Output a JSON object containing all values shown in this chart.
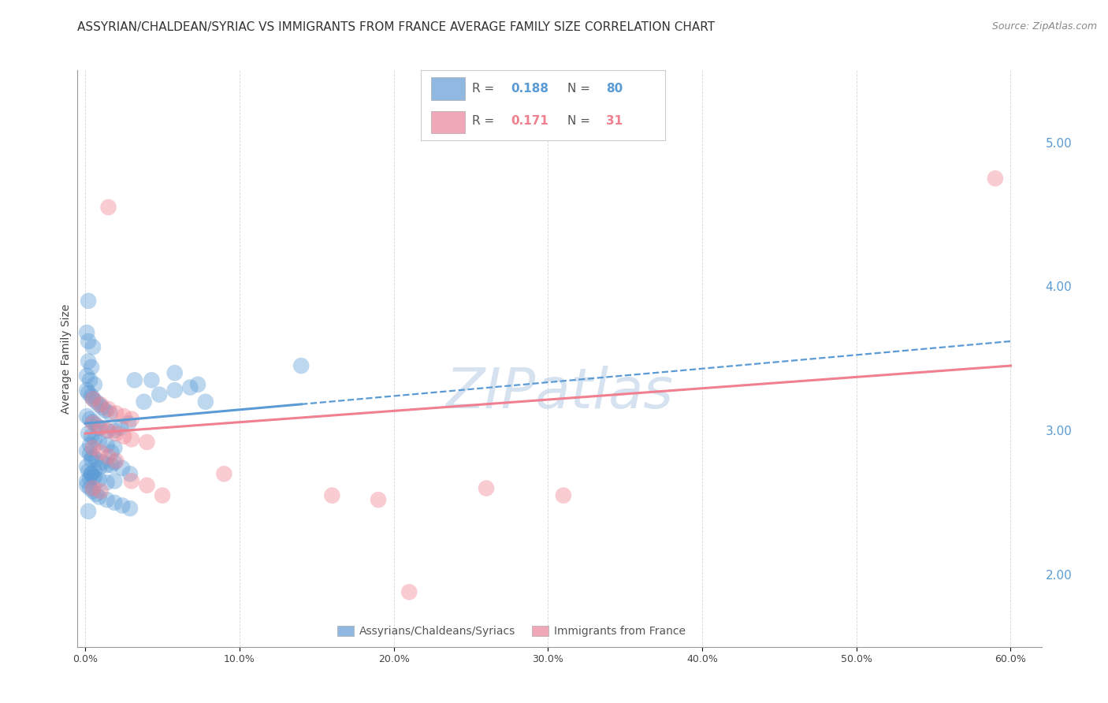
{
  "title": "ASSYRIAN/CHALDEAN/SYRIAC VS IMMIGRANTS FROM FRANCE AVERAGE FAMILY SIZE CORRELATION CHART",
  "source": "Source: ZipAtlas.com",
  "ylabel": "Average Family Size",
  "xlabel_ticks": [
    "0.0%",
    "10.0%",
    "20.0%",
    "30.0%",
    "40.0%",
    "50.0%",
    "60.0%"
  ],
  "xlabel_values": [
    0,
    10,
    20,
    30,
    40,
    50,
    60
  ],
  "xlim": [
    -0.5,
    62
  ],
  "ylim": [
    1.5,
    5.5
  ],
  "yticks_right": [
    2.0,
    3.0,
    4.0,
    5.0
  ],
  "ytick_labels_right": [
    "2.00",
    "3.00",
    "4.00",
    "5.00"
  ],
  "blue_color": "#5b9bd5",
  "pink_color": "#f08090",
  "blue_fill": "#90b8e0",
  "pink_fill": "#f0a8b8",
  "watermark": "ZIPatlas",
  "blue_scatter": [
    [
      0.1,
      3.68
    ],
    [
      0.2,
      3.62
    ],
    [
      0.5,
      3.58
    ],
    [
      0.2,
      3.48
    ],
    [
      0.4,
      3.44
    ],
    [
      0.1,
      3.38
    ],
    [
      0.3,
      3.35
    ],
    [
      0.6,
      3.32
    ],
    [
      0.1,
      3.28
    ],
    [
      0.2,
      3.26
    ],
    [
      0.4,
      3.24
    ],
    [
      0.5,
      3.22
    ],
    [
      0.7,
      3.2
    ],
    [
      0.9,
      3.18
    ],
    [
      1.1,
      3.16
    ],
    [
      1.3,
      3.14
    ],
    [
      1.6,
      3.12
    ],
    [
      0.1,
      3.1
    ],
    [
      0.3,
      3.08
    ],
    [
      0.5,
      3.06
    ],
    [
      0.7,
      3.04
    ],
    [
      0.9,
      3.02
    ],
    [
      1.4,
      3.0
    ],
    [
      1.9,
      3.0
    ],
    [
      2.3,
      3.02
    ],
    [
      2.8,
      3.05
    ],
    [
      0.2,
      2.98
    ],
    [
      0.4,
      2.96
    ],
    [
      0.6,
      2.94
    ],
    [
      0.9,
      2.92
    ],
    [
      1.4,
      2.9
    ],
    [
      1.9,
      2.88
    ],
    [
      0.1,
      2.86
    ],
    [
      0.3,
      2.84
    ],
    [
      0.5,
      2.82
    ],
    [
      0.7,
      2.8
    ],
    [
      1.1,
      2.78
    ],
    [
      1.7,
      2.76
    ],
    [
      2.4,
      2.74
    ],
    [
      0.2,
      2.72
    ],
    [
      0.4,
      2.7
    ],
    [
      0.6,
      2.68
    ],
    [
      0.9,
      2.66
    ],
    [
      1.4,
      2.64
    ],
    [
      3.2,
      3.35
    ],
    [
      4.8,
      3.25
    ],
    [
      5.8,
      3.4
    ],
    [
      6.8,
      3.3
    ],
    [
      7.8,
      3.2
    ],
    [
      14.0,
      3.45
    ],
    [
      0.1,
      2.62
    ],
    [
      0.3,
      2.6
    ],
    [
      0.5,
      2.58
    ],
    [
      0.7,
      2.56
    ],
    [
      0.9,
      2.54
    ],
    [
      1.4,
      2.52
    ],
    [
      1.9,
      2.5
    ],
    [
      2.4,
      2.48
    ],
    [
      2.9,
      2.46
    ],
    [
      0.2,
      2.44
    ],
    [
      0.4,
      2.7
    ],
    [
      0.6,
      2.72
    ],
    [
      0.9,
      2.74
    ],
    [
      1.4,
      2.76
    ],
    [
      1.9,
      2.78
    ],
    [
      4.3,
      3.35
    ],
    [
      5.8,
      3.28
    ],
    [
      7.3,
      3.32
    ],
    [
      0.1,
      2.65
    ],
    [
      0.3,
      2.67
    ],
    [
      0.5,
      2.68
    ],
    [
      0.2,
      3.9
    ],
    [
      1.9,
      2.65
    ],
    [
      2.9,
      2.7
    ],
    [
      0.1,
      2.75
    ],
    [
      0.4,
      2.8
    ],
    [
      1.7,
      2.85
    ],
    [
      0.3,
      2.9
    ],
    [
      3.8,
      3.2
    ]
  ],
  "pink_scatter": [
    [
      1.5,
      4.55
    ],
    [
      0.5,
      3.22
    ],
    [
      1.0,
      3.18
    ],
    [
      1.5,
      3.15
    ],
    [
      2.0,
      3.12
    ],
    [
      2.5,
      3.1
    ],
    [
      3.0,
      3.08
    ],
    [
      0.5,
      3.05
    ],
    [
      1.0,
      3.02
    ],
    [
      1.5,
      3.0
    ],
    [
      2.0,
      2.98
    ],
    [
      2.5,
      2.96
    ],
    [
      3.0,
      2.94
    ],
    [
      4.0,
      2.92
    ],
    [
      0.5,
      2.88
    ],
    [
      1.0,
      2.85
    ],
    [
      1.5,
      2.82
    ],
    [
      2.0,
      2.79
    ],
    [
      3.0,
      2.65
    ],
    [
      4.0,
      2.62
    ],
    [
      0.5,
      2.6
    ],
    [
      1.0,
      2.58
    ],
    [
      5.0,
      2.55
    ],
    [
      9.0,
      2.7
    ],
    [
      16.0,
      2.55
    ],
    [
      19.0,
      2.52
    ],
    [
      26.0,
      2.6
    ],
    [
      31.0,
      2.55
    ],
    [
      59.0,
      4.75
    ],
    [
      21.0,
      1.88
    ]
  ],
  "blue_line_x": [
    0.0,
    60.0
  ],
  "blue_line_y": [
    3.05,
    3.62
  ],
  "blue_solid_end_x": 14.0,
  "pink_line_x": [
    0.0,
    60.0
  ],
  "pink_line_y": [
    2.98,
    3.45
  ],
  "background_color": "#ffffff",
  "grid_color": "#cccccc",
  "title_fontsize": 11,
  "axis_label_fontsize": 10,
  "tick_fontsize": 9,
  "right_tick_color": "#5b9bd5"
}
